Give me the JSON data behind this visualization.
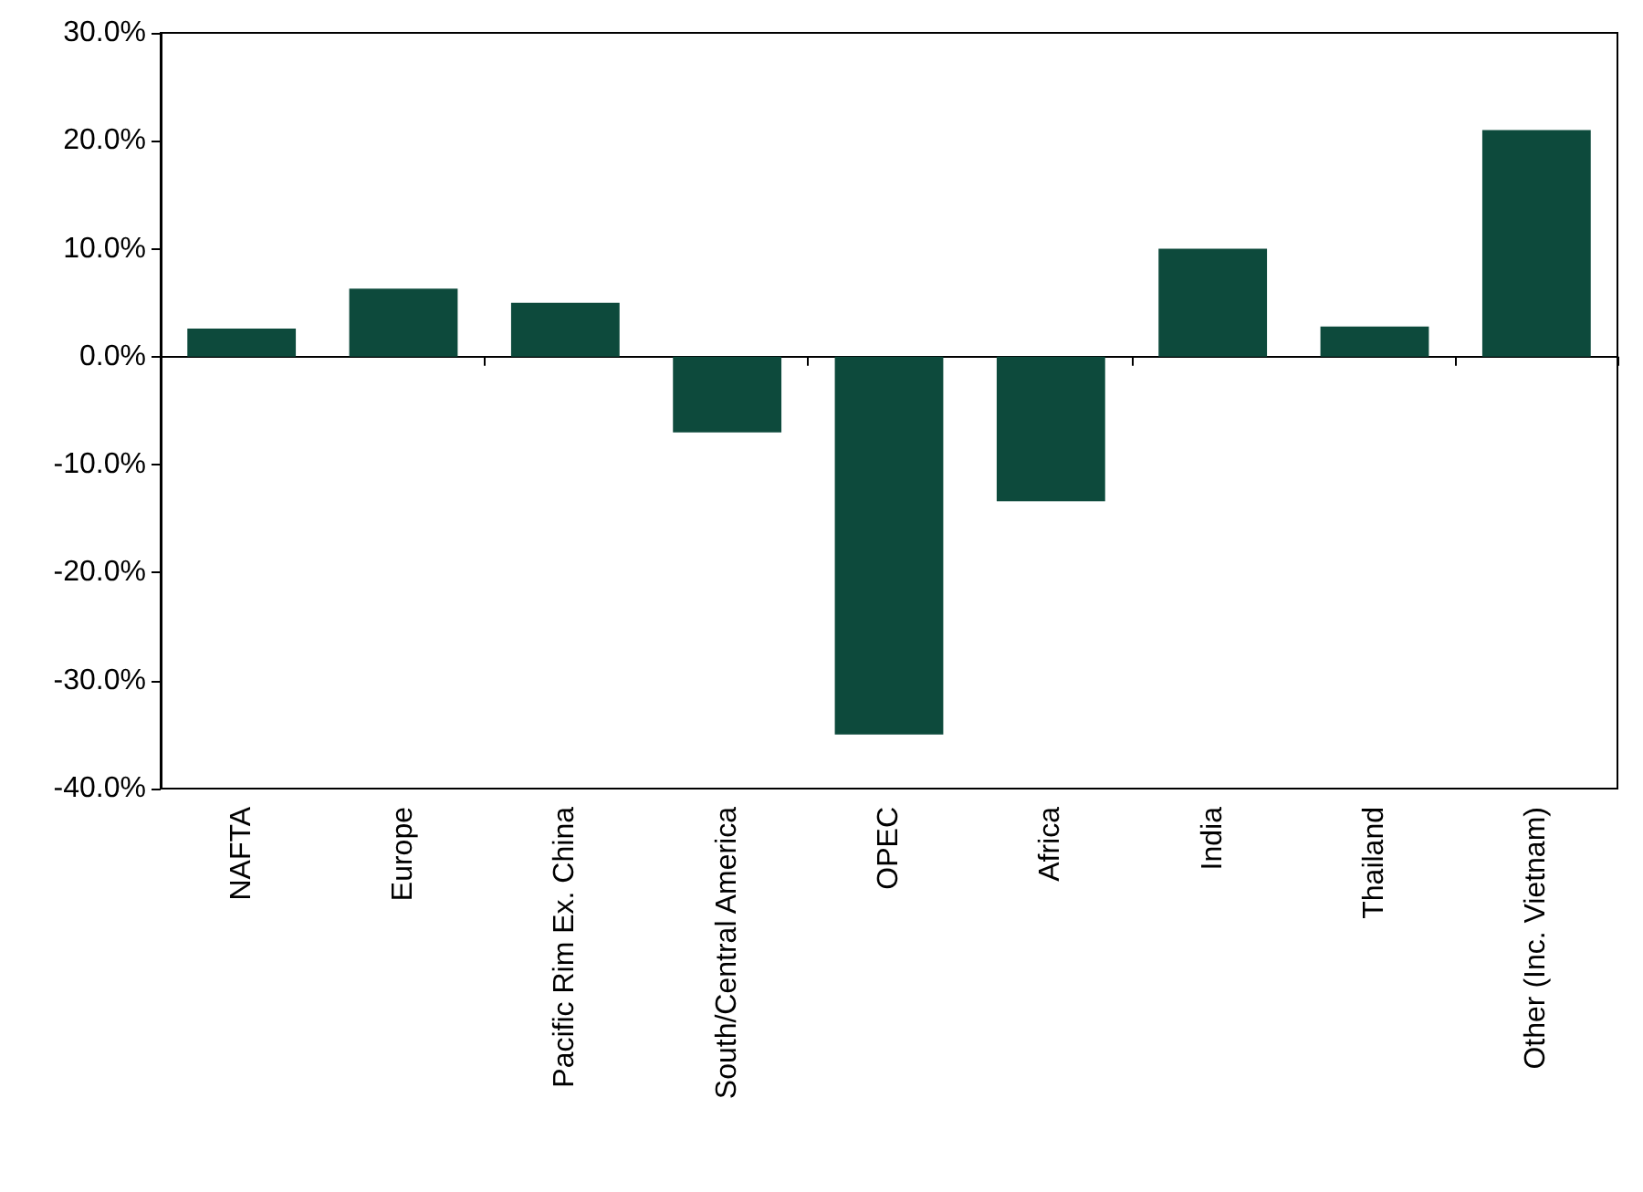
{
  "chart_data": {
    "type": "bar",
    "categories": [
      "NAFTA",
      "Europe",
      "Pacific Rim Ex. China",
      "South/Central America",
      "OPEC",
      "Africa",
      "India",
      "Thailand",
      "Other (Inc. Vietnam)"
    ],
    "values": [
      2.6,
      6.3,
      5.0,
      -7.0,
      -35.0,
      -13.4,
      10.0,
      2.8,
      21.0
    ],
    "color": "#0d4a3c",
    "yticks": [
      {
        "value": -40,
        "label": "-40.0%"
      },
      {
        "value": -30,
        "label": "-30.0%"
      },
      {
        "value": -20,
        "label": "-20.0%"
      },
      {
        "value": -10,
        "label": "-10.0%"
      },
      {
        "value": 0,
        "label": "0.0%"
      },
      {
        "value": 10,
        "label": "10.0%"
      },
      {
        "value": 20,
        "label": "20.0%"
      },
      {
        "value": 30,
        "label": "30.0%"
      }
    ],
    "ylim": [
      -40,
      30
    ]
  }
}
